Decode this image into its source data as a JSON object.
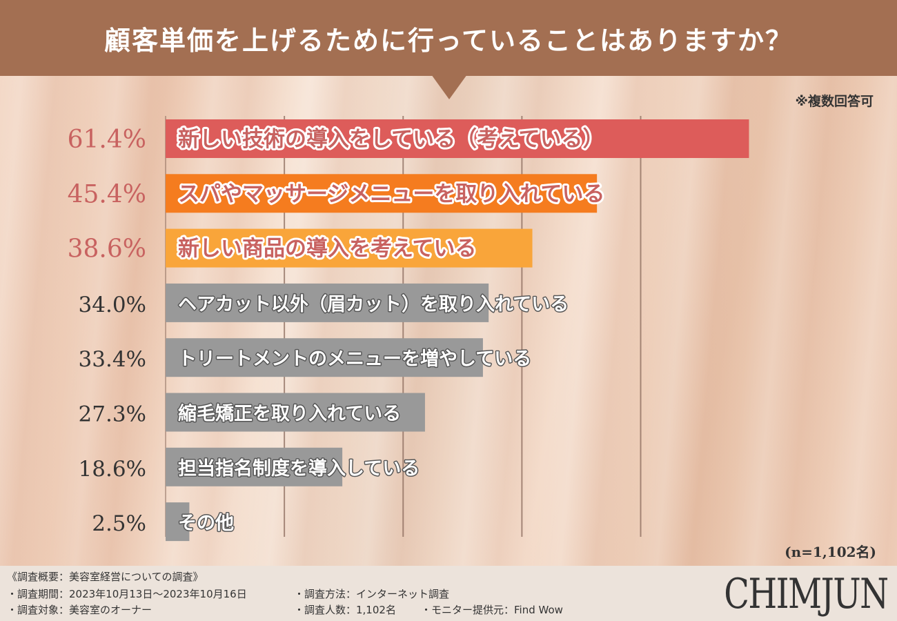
{
  "header": {
    "title": "顧客単価を上げるために行っていることはありますか？"
  },
  "note": "※複数回答可",
  "sample_size": "(n=1,102名)",
  "colors": {
    "header_bg": "#a36f52",
    "bar_top1": "#dd5c5a",
    "bar_top2": "#f57c1f",
    "bar_top3": "#f9a53a",
    "bar_other": "#999999",
    "pct_highlight": "#c86260",
    "pct_other": "#333333"
  },
  "chart_data": {
    "type": "bar",
    "orientation": "horizontal",
    "categories": [
      "新しい技術の導入をしている（考えている）",
      "スパやマッサージメニューを取り入れている",
      "新しい商品の導入を考えている",
      "ヘアカット以外（眉カット）を取り入れている",
      "トリートメントのメニューを増やしている",
      "縮毛矯正を取り入れている",
      "担当指名制度を導入している",
      "その他"
    ],
    "values": [
      61.4,
      45.4,
      38.6,
      34.0,
      33.4,
      27.3,
      18.6,
      2.5
    ],
    "value_labels": [
      "61.4%",
      "45.4%",
      "38.6%",
      "34.0%",
      "33.4%",
      "27.3%",
      "18.6%",
      "2.5%"
    ],
    "highlighted": [
      true,
      true,
      true,
      false,
      false,
      false,
      false,
      false
    ],
    "xlim": [
      0,
      62
    ],
    "grid": true
  },
  "footer": {
    "overview": "《調査概要：美容室経営についての調査》",
    "period": "・調査期間：2023年10月13日〜2023年10月16日",
    "target": "・調査対象：美容室のオーナー",
    "method": "・調査方法：インターネット調査",
    "count": "・調査人数：1,102名",
    "provider": "・モニター提供元：Find Wow"
  },
  "logo": "CHIMJUN"
}
